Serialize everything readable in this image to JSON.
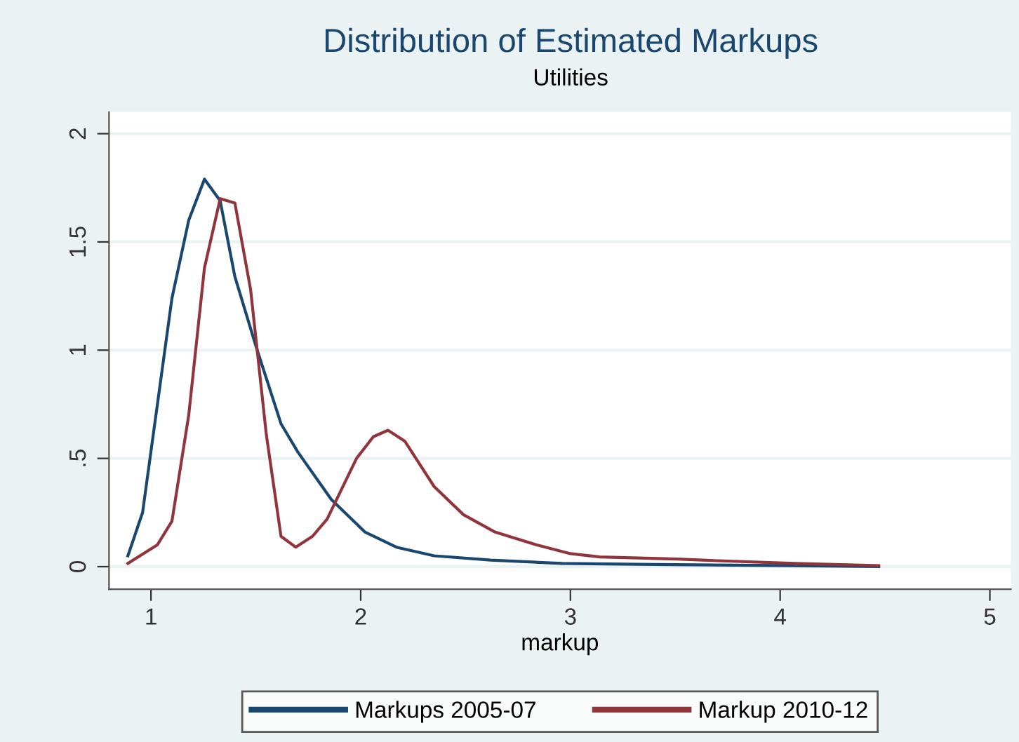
{
  "chart_data": {
    "type": "line",
    "title": "Distribution of Estimated Markups",
    "subtitle": "Utilities",
    "xlabel": "markup",
    "xlim": [
      0.8,
      5.1
    ],
    "ylim": [
      -0.104,
      2.1
    ],
    "xticks": [
      1,
      2,
      3,
      4,
      5
    ],
    "yticks": [
      0,
      {
        "value": 0.5,
        "label": ".5"
      },
      1,
      1.5,
      2
    ],
    "grid": "y",
    "legend": "bottom",
    "marker": "none",
    "line_style": "solid",
    "series": [
      {
        "name": "Markups 2005-07",
        "color": "#1a476f",
        "x": [
          0.89,
          0.96,
          1.1,
          1.18,
          1.255,
          1.33,
          1.4,
          1.5,
          1.62,
          1.7,
          1.86,
          2.02,
          2.17,
          2.35,
          2.62,
          2.96,
          3.4,
          4.0,
          4.47
        ],
        "values": [
          0.05,
          0.25,
          1.24,
          1.6,
          1.79,
          1.69,
          1.34,
          1.02,
          0.66,
          0.53,
          0.31,
          0.16,
          0.09,
          0.05,
          0.03,
          0.015,
          0.01,
          0.005,
          0
        ]
      },
      {
        "name": "Markup 2010-12",
        "color": "#90353b",
        "x": [
          0.89,
          1.03,
          1.1,
          1.18,
          1.255,
          1.33,
          1.4,
          1.475,
          1.55,
          1.62,
          1.69,
          1.77,
          1.84,
          1.98,
          2.06,
          2.13,
          2.21,
          2.35,
          2.49,
          2.64,
          2.84,
          3.0,
          3.14,
          3.51,
          3.63,
          4.07,
          4.47
        ],
        "values": [
          0.015,
          0.1,
          0.21,
          0.7,
          1.38,
          1.7,
          1.68,
          1.28,
          0.61,
          0.14,
          0.09,
          0.14,
          0.22,
          0.5,
          0.6,
          0.63,
          0.58,
          0.37,
          0.24,
          0.16,
          0.1,
          0.06,
          0.045,
          0.035,
          0.03,
          0.015,
          0.005
        ]
      }
    ]
  }
}
